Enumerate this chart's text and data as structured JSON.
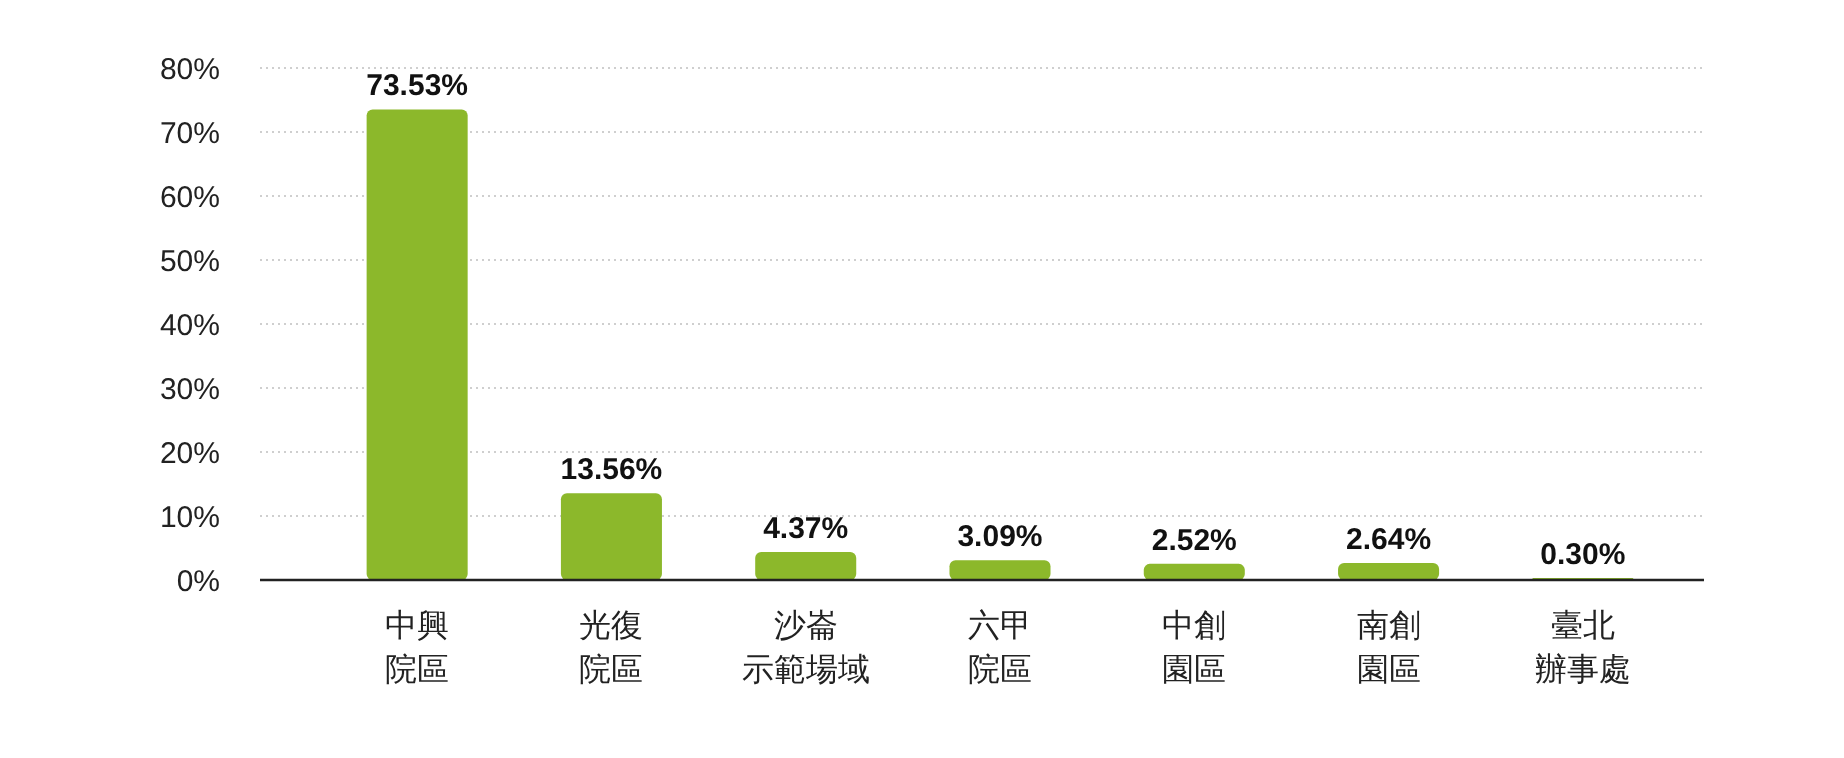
{
  "chart_data": {
    "type": "bar",
    "categories": [
      "中興院區",
      "光復院區",
      "沙崙示範場域",
      "六甲院區",
      "中創園區",
      "南創園區",
      "臺北辦事處"
    ],
    "values": [
      73.53,
      13.56,
      4.37,
      3.09,
      2.52,
      2.64,
      0.3
    ],
    "value_labels": [
      "73.53%",
      "13.56%",
      "4.37%",
      "3.09%",
      "2.52%",
      "2.64%",
      "0.30%"
    ],
    "color": "#8cb82b",
    "ylim": [
      0,
      80
    ],
    "yticks": [
      {
        "value": 0,
        "label": "0%"
      },
      {
        "value": 10,
        "label": "10%"
      },
      {
        "value": 20,
        "label": "20%"
      },
      {
        "value": 30,
        "label": "30%"
      },
      {
        "value": 40,
        "label": "40%"
      },
      {
        "value": 50,
        "label": "50%"
      },
      {
        "value": 60,
        "label": "60%"
      },
      {
        "value": 70,
        "label": "70%"
      },
      {
        "value": 80,
        "label": "80%"
      }
    ],
    "grid": "y"
  }
}
